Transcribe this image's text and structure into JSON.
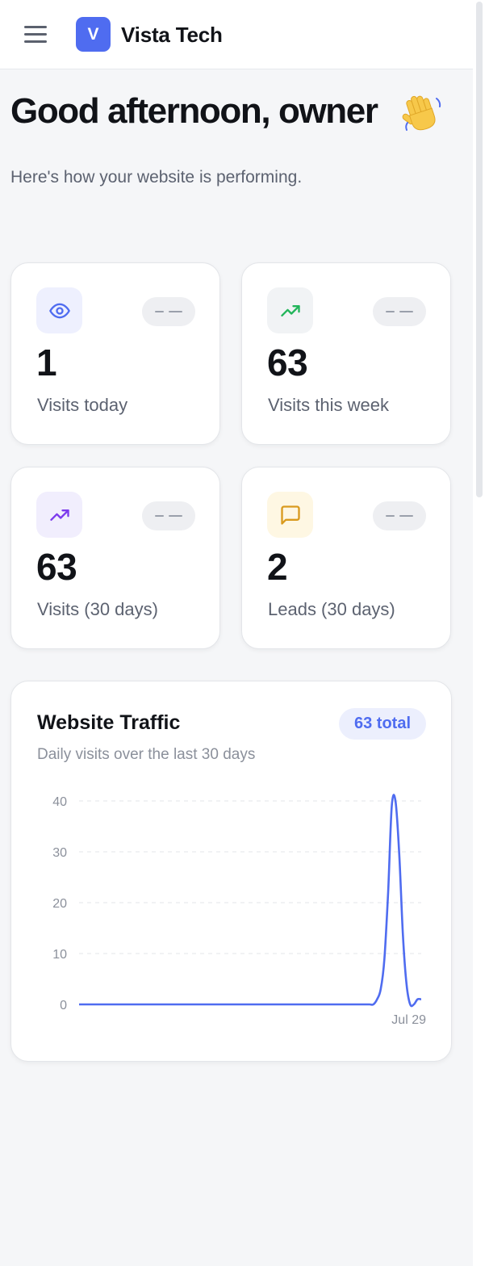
{
  "header": {
    "brand_initial": "V",
    "brand_name": "Vista Tech",
    "menu_icon": "hamburger-menu-icon"
  },
  "greeting": {
    "title": "Good afternoon, owner",
    "emoji": "waving-hand-icon",
    "subtitle": "Here's how your website is performing."
  },
  "stats": [
    {
      "value": "1",
      "label": "Visits today",
      "icon": "eye-icon",
      "accent": "#4f6cf0",
      "icon_bg": "#eef0fe"
    },
    {
      "value": "63",
      "label": "Visits this week",
      "icon": "trending-up-icon",
      "accent": "#22b55a",
      "icon_bg": "#f1f3f5"
    },
    {
      "value": "63",
      "label": "Visits (30 days)",
      "icon": "trending-up-icon",
      "accent": "#7c3aed",
      "icon_bg": "#f1eefd"
    },
    {
      "value": "2",
      "label": "Leads (30 days)",
      "icon": "message-square-icon",
      "accent": "#d99a1e",
      "icon_bg": "#fef7e3"
    }
  ],
  "traffic": {
    "title": "Website Traffic",
    "subtitle": "Daily visits over the last 30 days",
    "badge": "63 total"
  },
  "chart_data": {
    "type": "line",
    "title": "Website Traffic",
    "subtitle": "Daily visits over the last 30 days",
    "x_tick_labels": [
      "Jul 29"
    ],
    "y_ticks": [
      0,
      10,
      20,
      30,
      40
    ],
    "ylim": [
      0,
      40
    ],
    "grid": true,
    "line_color": "#4f6cf0",
    "series": [
      {
        "values": [
          0,
          0,
          0,
          0,
          0,
          0,
          0,
          0,
          0,
          0,
          0,
          0,
          0,
          0,
          0,
          0,
          0,
          0,
          0,
          0,
          0,
          0,
          0,
          0,
          0,
          0,
          0,
          0,
          0,
          0,
          0,
          0,
          0,
          0,
          0,
          0,
          0,
          0,
          0,
          0,
          0,
          0,
          0,
          0,
          0,
          0,
          0,
          0,
          0,
          0,
          0,
          0,
          0,
          0,
          0,
          0,
          0,
          0,
          0,
          0,
          0,
          0,
          0,
          0,
          0,
          0,
          0,
          0,
          0,
          0,
          0,
          0,
          0,
          0,
          0,
          0,
          0,
          0,
          0,
          0,
          0,
          1,
          3,
          9,
          22,
          39,
          40,
          30,
          14,
          4,
          0,
          0,
          1,
          1
        ]
      }
    ]
  }
}
